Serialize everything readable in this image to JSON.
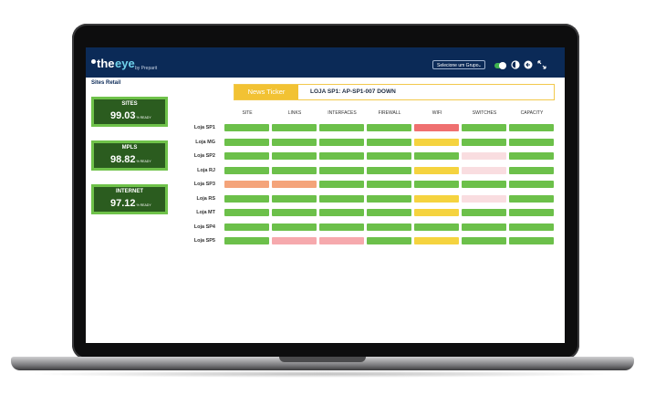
{
  "app": {
    "logo_text_the": "the",
    "logo_text_eye": "eye",
    "logo_by": "by Preparit",
    "group_select_value": "Selecione um Grupo",
    "section_title": "Sites Retail"
  },
  "kpis": [
    {
      "label": "SITES",
      "value": "99.03",
      "unit": "% READY"
    },
    {
      "label": "MPLS",
      "value": "98.82",
      "unit": "% READY"
    },
    {
      "label": "INTERNET",
      "value": "97.12",
      "unit": "% READY"
    }
  ],
  "ticker": {
    "label": "News Ticker",
    "message": "LOJA SP1: AP-SP1-007 DOWN"
  },
  "grid": {
    "columns": [
      "SITE",
      "LINKS",
      "INTERFACES",
      "FIREWALL",
      "WIFI",
      "SWITCHES",
      "CAPACITY"
    ],
    "rows": [
      {
        "label": "Loja SP1",
        "status": [
          "ok",
          "ok",
          "ok",
          "ok",
          "critical",
          "ok",
          "ok"
        ]
      },
      {
        "label": "Loja MG",
        "status": [
          "ok",
          "ok",
          "ok",
          "ok",
          "warning",
          "ok",
          "ok"
        ]
      },
      {
        "label": "Loja SP2",
        "status": [
          "ok",
          "ok",
          "ok",
          "ok",
          "ok",
          "minor",
          "ok"
        ]
      },
      {
        "label": "Loja RJ",
        "status": [
          "ok",
          "ok",
          "ok",
          "ok",
          "warning",
          "minor",
          "ok"
        ]
      },
      {
        "label": "Loja SP3",
        "status": [
          "major",
          "major",
          "ok",
          "ok",
          "ok",
          "ok",
          "ok"
        ]
      },
      {
        "label": "Loja RS",
        "status": [
          "ok",
          "ok",
          "ok",
          "ok",
          "warning",
          "minor",
          "ok"
        ]
      },
      {
        "label": "Loja MT",
        "status": [
          "ok",
          "ok",
          "ok",
          "ok",
          "warning",
          "ok",
          "ok"
        ]
      },
      {
        "label": "Loja SP4",
        "status": [
          "ok",
          "ok",
          "ok",
          "ok",
          "ok",
          "ok",
          "ok"
        ]
      },
      {
        "label": "Loja SP5",
        "status": [
          "ok",
          "pink",
          "pink",
          "ok",
          "warning",
          "ok",
          "ok"
        ]
      }
    ]
  },
  "colors": {
    "ok": "#6cc04a",
    "warning": "#f5d33f",
    "critical": "#ef7070",
    "major": "#f4a47a",
    "minor": "#f9dde0",
    "pink": "#f6a9ad",
    "header_bg": "#0b2a57",
    "accent": "#f2c233"
  },
  "icons": {
    "theme": "half-circle-icon",
    "logout": "arrow-exit-icon",
    "fullscreen": "expand-icon"
  }
}
